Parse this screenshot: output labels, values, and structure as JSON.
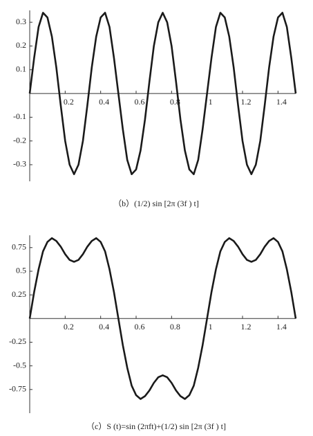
{
  "chart_data": [
    {
      "type": "line",
      "caption": "（b）(1/2) sin [2π (3f ) t]",
      "x": [
        0,
        0.025,
        0.05,
        0.075,
        0.1,
        0.125,
        0.15,
        0.175,
        0.2,
        0.225,
        0.25,
        0.275,
        0.3,
        0.325,
        0.35,
        0.375,
        0.4,
        0.425,
        0.45,
        0.475,
        0.5,
        0.525,
        0.55,
        0.575,
        0.6,
        0.625,
        0.65,
        0.675,
        0.7,
        0.725,
        0.75,
        0.775,
        0.8,
        0.825,
        0.85,
        0.875,
        0.9,
        0.925,
        0.95,
        0.975,
        1,
        1.025,
        1.05,
        1.075,
        1.1,
        1.125,
        1.15,
        1.175,
        1.2,
        1.225,
        1.25,
        1.275,
        1.3,
        1.325,
        1.35,
        1.375,
        1.4,
        1.425,
        1.45,
        1.475,
        1.5
      ],
      "values": [
        0,
        0.15,
        0.28,
        0.34,
        0.32,
        0.24,
        0.11,
        -0.05,
        -0.2,
        -0.3,
        -0.34,
        -0.3,
        -0.2,
        -0.05,
        0.11,
        0.24,
        0.32,
        0.34,
        0.28,
        0.15,
        0,
        -0.15,
        -0.28,
        -0.34,
        -0.32,
        -0.24,
        -0.11,
        0.05,
        0.2,
        0.3,
        0.34,
        0.3,
        0.2,
        0.05,
        -0.11,
        -0.24,
        -0.32,
        -0.34,
        -0.28,
        -0.15,
        0,
        0.15,
        0.28,
        0.34,
        0.32,
        0.24,
        0.11,
        -0.05,
        -0.2,
        -0.3,
        -0.34,
        -0.3,
        -0.2,
        -0.05,
        0.11,
        0.24,
        0.32,
        0.34,
        0.28,
        0.15,
        0
      ],
      "color": "#1a1a1a",
      "xlim": [
        0,
        1.5
      ],
      "xticks": [
        0.2,
        0.4,
        0.6,
        0.8,
        1,
        1.2,
        1.4
      ],
      "ylim": [
        -0.37,
        0.35
      ],
      "yticks": [
        -0.3,
        -0.2,
        -0.1,
        0.1,
        0.2,
        0.3
      ]
    },
    {
      "type": "line",
      "caption": "（c）S (t)=sin (2πft)+(1/2) sin [2π (3f ) t]",
      "x": [
        0,
        0.025,
        0.05,
        0.075,
        0.1,
        0.125,
        0.15,
        0.175,
        0.2,
        0.225,
        0.25,
        0.275,
        0.3,
        0.325,
        0.35,
        0.375,
        0.4,
        0.425,
        0.45,
        0.475,
        0.5,
        0.525,
        0.55,
        0.575,
        0.6,
        0.625,
        0.65,
        0.675,
        0.7,
        0.725,
        0.75,
        0.775,
        0.8,
        0.825,
        0.85,
        0.875,
        0.9,
        0.925,
        0.95,
        0.975,
        1,
        1.025,
        1.05,
        1.075,
        1.1,
        1.125,
        1.15,
        1.175,
        1.2,
        1.225,
        1.25,
        1.275,
        1.3,
        1.325,
        1.35,
        1.375,
        1.4,
        1.425,
        1.45,
        1.475,
        1.5
      ],
      "values": [
        0,
        0.28,
        0.52,
        0.71,
        0.81,
        0.85,
        0.82,
        0.76,
        0.68,
        0.62,
        0.6,
        0.62,
        0.68,
        0.76,
        0.82,
        0.85,
        0.81,
        0.71,
        0.52,
        0.28,
        0,
        -0.28,
        -0.52,
        -0.71,
        -0.81,
        -0.85,
        -0.82,
        -0.76,
        -0.68,
        -0.62,
        -0.6,
        -0.62,
        -0.68,
        -0.76,
        -0.82,
        -0.85,
        -0.81,
        -0.71,
        -0.52,
        -0.28,
        0,
        0.28,
        0.52,
        0.71,
        0.81,
        0.85,
        0.82,
        0.76,
        0.68,
        0.62,
        0.6,
        0.62,
        0.68,
        0.76,
        0.82,
        0.85,
        0.81,
        0.71,
        0.52,
        0.28,
        0
      ],
      "color": "#1a1a1a",
      "xlim": [
        0,
        1.5
      ],
      "xticks": [
        0.2,
        0.4,
        0.6,
        0.8,
        1,
        1.2,
        1.4
      ],
      "ylim": [
        -1.0,
        0.88
      ],
      "yticks": [
        -0.75,
        -0.5,
        -0.25,
        0.25,
        0.5,
        0.75
      ]
    }
  ]
}
